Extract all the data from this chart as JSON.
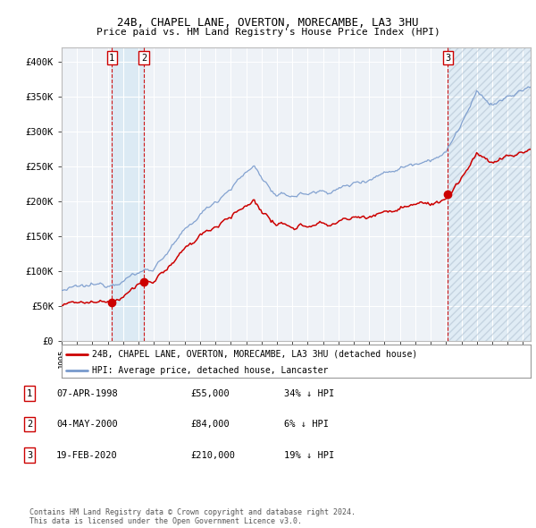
{
  "title1": "24B, CHAPEL LANE, OVERTON, MORECAMBE, LA3 3HU",
  "title2": "Price paid vs. HM Land Registry's House Price Index (HPI)",
  "xlim_start": 1995.0,
  "xlim_end": 2025.5,
  "ylim_min": 0,
  "ylim_max": 420000,
  "yticks": [
    0,
    50000,
    100000,
    150000,
    200000,
    250000,
    300000,
    350000,
    400000
  ],
  "ytick_labels": [
    "£0",
    "£50K",
    "£100K",
    "£150K",
    "£200K",
    "£250K",
    "£300K",
    "£350K",
    "£400K"
  ],
  "xticks": [
    1995,
    1996,
    1997,
    1998,
    1999,
    2000,
    2001,
    2002,
    2003,
    2004,
    2005,
    2006,
    2007,
    2008,
    2009,
    2010,
    2011,
    2012,
    2013,
    2014,
    2015,
    2016,
    2017,
    2018,
    2019,
    2020,
    2021,
    2022,
    2023,
    2024,
    2025
  ],
  "sale1_x": 1998.27,
  "sale1_y": 55000,
  "sale2_x": 2000.34,
  "sale2_y": 84000,
  "sale3_x": 2020.12,
  "sale3_y": 210000,
  "hpi_color": "#7799cc",
  "price_color": "#cc0000",
  "dot_color": "#cc0000",
  "vline_color": "#cc0000",
  "shade_color": "#d8e8f4",
  "legend_label1": "24B, CHAPEL LANE, OVERTON, MORECAMBE, LA3 3HU (detached house)",
  "legend_label2": "HPI: Average price, detached house, Lancaster",
  "table_entries": [
    {
      "num": "1",
      "date": "07-APR-1998",
      "price": "£55,000",
      "note": "34% ↓ HPI"
    },
    {
      "num": "2",
      "date": "04-MAY-2000",
      "price": "£84,000",
      "note": "6% ↓ HPI"
    },
    {
      "num": "3",
      "date": "19-FEB-2020",
      "price": "£210,000",
      "note": "19% ↓ HPI"
    }
  ],
  "footer": "Contains HM Land Registry data © Crown copyright and database right 2024.\nThis data is licensed under the Open Government Licence v3.0.",
  "bg_color": "#ffffff",
  "plot_bg_color": "#eef2f7",
  "grid_color": "#ffffff"
}
